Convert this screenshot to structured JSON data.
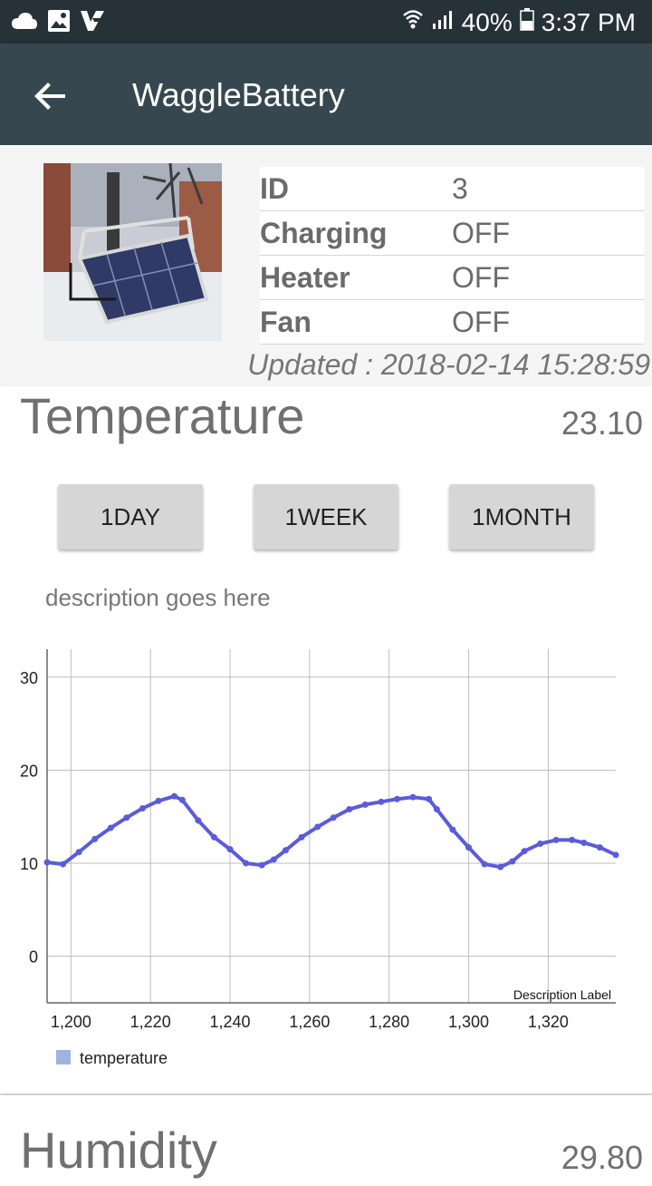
{
  "status_bar": {
    "battery": "40%",
    "time": "3:37 PM"
  },
  "app_bar": {
    "title": "WaggleBattery"
  },
  "device": {
    "rows": [
      {
        "label": "ID",
        "value": "3"
      },
      {
        "label": "Charging",
        "value": "OFF"
      },
      {
        "label": "Heater",
        "value": "OFF"
      },
      {
        "label": "Fan",
        "value": "OFF"
      }
    ],
    "updated": "Updated : 2018-02-14 15:28:59"
  },
  "temperature": {
    "title": "Temperature",
    "value": "23.10",
    "buttons": [
      "1DAY",
      "1WEEK",
      "1MONTH"
    ],
    "description": "description goes here"
  },
  "humidity": {
    "title": "Humidity",
    "value": "29.80"
  },
  "chart_data": {
    "type": "line",
    "title": "",
    "xlabel": "",
    "ylabel": "",
    "xlim": [
      1194,
      1337
    ],
    "ylim": [
      -5,
      33
    ],
    "x_ticks": [
      "1,200",
      "1,220",
      "1,240",
      "1,260",
      "1,280",
      "1,300",
      "1,320"
    ],
    "y_ticks": [
      "0",
      "10",
      "20",
      "30"
    ],
    "description_label": "Description Label",
    "legend": "bottom-left",
    "grid": true,
    "series": [
      {
        "name": "temperature",
        "color": "#5b5bdc",
        "legend_color": "#9fb3e0",
        "x": [
          1194,
          1198,
          1202,
          1206,
          1210,
          1214,
          1218,
          1222,
          1226,
          1228,
          1232,
          1236,
          1240,
          1244,
          1248,
          1251,
          1254,
          1258,
          1262,
          1266,
          1270,
          1274,
          1278,
          1282,
          1286,
          1290,
          1292,
          1296,
          1300,
          1304,
          1308,
          1311,
          1314,
          1318,
          1322,
          1326,
          1329,
          1333,
          1337
        ],
        "y": [
          10.1,
          9.9,
          11.2,
          12.6,
          13.8,
          14.9,
          15.9,
          16.7,
          17.2,
          16.8,
          14.6,
          12.8,
          11.5,
          10.0,
          9.8,
          10.4,
          11.4,
          12.8,
          13.9,
          14.9,
          15.8,
          16.3,
          16.6,
          16.9,
          17.1,
          16.9,
          15.8,
          13.6,
          11.7,
          9.9,
          9.6,
          10.2,
          11.3,
          12.1,
          12.5,
          12.5,
          12.2,
          11.7,
          10.9
        ]
      }
    ]
  }
}
